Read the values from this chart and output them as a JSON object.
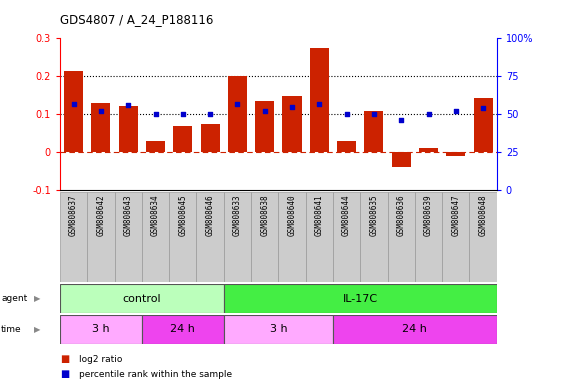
{
  "title": "GDS4807 / A_24_P188116",
  "samples": [
    "GSM808637",
    "GSM808642",
    "GSM808643",
    "GSM808634",
    "GSM808645",
    "GSM808646",
    "GSM808633",
    "GSM808638",
    "GSM808640",
    "GSM808641",
    "GSM808644",
    "GSM808635",
    "GSM808636",
    "GSM808639",
    "GSM808647",
    "GSM808648"
  ],
  "log2_ratio": [
    0.213,
    0.13,
    0.123,
    0.03,
    0.068,
    0.075,
    0.202,
    0.135,
    0.148,
    0.275,
    0.03,
    0.108,
    -0.04,
    0.01,
    -0.01,
    0.143
  ],
  "percentile": [
    57,
    52,
    56,
    50,
    50,
    50,
    57,
    52,
    55,
    57,
    50,
    50,
    46,
    50,
    52,
    54
  ],
  "bar_color": "#cc2200",
  "dot_color": "#0000cc",
  "ylim_left": [
    -0.1,
    0.3
  ],
  "ylim_right": [
    0,
    100
  ],
  "yticks_left": [
    -0.1,
    0.0,
    0.1,
    0.2,
    0.3
  ],
  "yticks_right": [
    0,
    25,
    50,
    75,
    100
  ],
  "ytick_labels_left": [
    "-0.1",
    "0",
    "0.1",
    "0.2",
    "0.3"
  ],
  "ytick_labels_right": [
    "0",
    "25",
    "50",
    "75",
    "100%"
  ],
  "hlines": [
    0.1,
    0.2
  ],
  "agent_groups": [
    {
      "label": "control",
      "start": 0,
      "end": 6,
      "color": "#bbffbb"
    },
    {
      "label": "IL-17C",
      "start": 6,
      "end": 16,
      "color": "#44ee44"
    }
  ],
  "time_groups": [
    {
      "label": "3 h",
      "start": 0,
      "end": 3,
      "color": "#ffaaff"
    },
    {
      "label": "24 h",
      "start": 3,
      "end": 6,
      "color": "#ee44ee"
    },
    {
      "label": "3 h",
      "start": 6,
      "end": 10,
      "color": "#ffaaff"
    },
    {
      "label": "24 h",
      "start": 10,
      "end": 16,
      "color": "#ee44ee"
    }
  ],
  "legend_items": [
    {
      "label": "log2 ratio",
      "color": "#cc2200"
    },
    {
      "label": "percentile rank within the sample",
      "color": "#0000cc"
    }
  ],
  "background_color": "#ffffff",
  "sample_box_color": "#cccccc",
  "zero_line_color": "#cc2200",
  "dotted_line_color": "#000000"
}
